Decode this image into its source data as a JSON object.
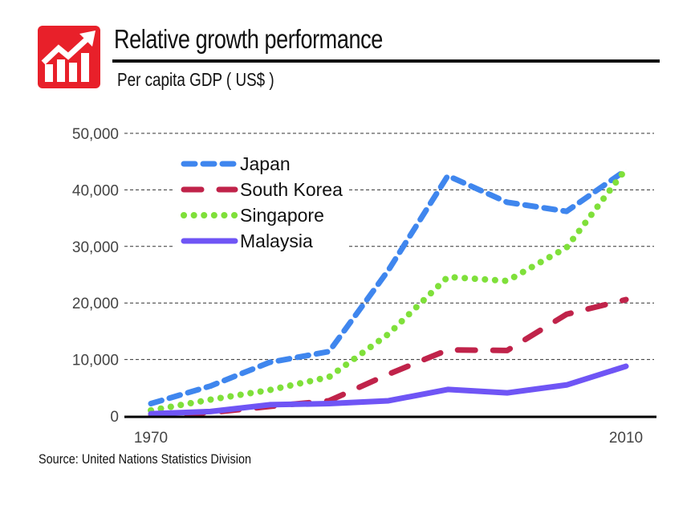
{
  "header": {
    "title": "Relative growth performance",
    "subtitle": "Per capita GDP ( US$ )"
  },
  "footer": {
    "source": "Source: United Nations Statistics Division"
  },
  "icons": {
    "logo": "growth-chart-icon",
    "logo_color": "#e8202a"
  },
  "chart_data": {
    "type": "line",
    "title": "Relative growth performance",
    "ylabel": "Per capita GDP ( US$ )",
    "xlabel": "",
    "x": [
      1970,
      1975,
      1980,
      1985,
      1990,
      1995,
      2000,
      2005,
      2010
    ],
    "x_tick_labels": [
      "1970",
      "2010"
    ],
    "y_ticks": [
      0,
      10000,
      20000,
      30000,
      40000,
      50000
    ],
    "y_tick_labels": [
      "0",
      "10,000",
      "20,000",
      "30,000",
      "40,000",
      "50,000"
    ],
    "ylim": [
      0,
      50000
    ],
    "grid": true,
    "legend": "top-left",
    "series": [
      {
        "name": "Japan",
        "color": "#3f86ee",
        "style": "dashed",
        "values": [
          2200,
          5300,
          9500,
          11400,
          25800,
          42500,
          37800,
          36200,
          43500
        ]
      },
      {
        "name": "South Korea",
        "color": "#c0234a",
        "style": "long-dashed",
        "values": [
          300,
          600,
          1700,
          2700,
          7400,
          11700,
          11600,
          18000,
          20600
        ]
      },
      {
        "name": "Singapore",
        "color": "#7fe03a",
        "style": "dotted",
        "values": [
          1000,
          2900,
          4600,
          6900,
          14500,
          24600,
          23900,
          29800,
          43700
        ]
      },
      {
        "name": "Malaysia",
        "color": "#6f55f5",
        "style": "solid",
        "values": [
          400,
          800,
          2000,
          2200,
          2700,
          4700,
          4100,
          5500,
          8800
        ]
      }
    ]
  }
}
